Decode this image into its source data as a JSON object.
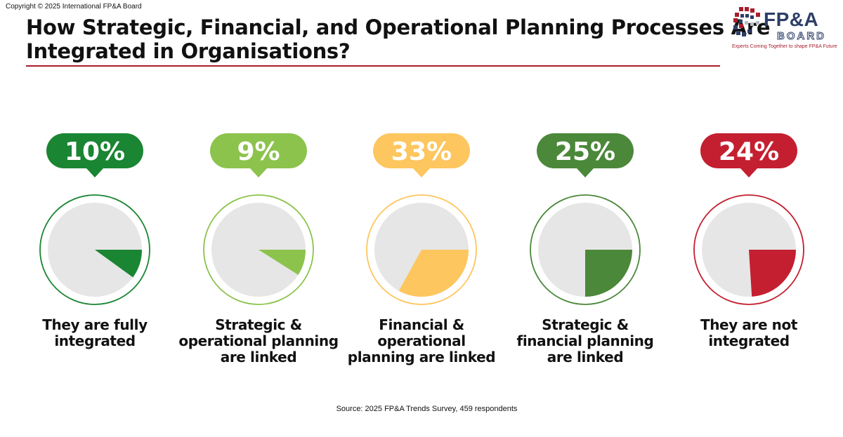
{
  "copyright": "Copyright © 2025 International  FP&A Board",
  "logo": {
    "icon_name": "fpa-board-grid-logo",
    "wordmark": "FP&A",
    "sub": "BOARD",
    "tagline": "Experts Coming Together to shape FP&A Future"
  },
  "chart_data": {
    "type": "pie",
    "title": "How Strategic, Financial, and Operational Planning Processes Are Integrated in Organisations?",
    "unit": "%",
    "categories": [
      "They are fully integrated",
      "Strategic & operational planning are linked",
      "Financial & operational planning are linked",
      "Strategic & financial planning are linked",
      "They are not integrated"
    ],
    "values": [
      10,
      9,
      33,
      25,
      24
    ],
    "labels": [
      "10%",
      "9%",
      "33%",
      "25%",
      "24%"
    ],
    "caption_lines": [
      [
        "They are fully",
        "integrated"
      ],
      [
        "Strategic &",
        "operational planning",
        "are linked"
      ],
      [
        "Financial &",
        "operational",
        "planning are linked"
      ],
      [
        "Strategic &",
        "financial planning",
        "are linked"
      ],
      [
        "They are not",
        "integrated"
      ]
    ],
    "colors": [
      "#1a8532",
      "#8cc34c",
      "#fdc65e",
      "#4b883a",
      "#c41f30"
    ],
    "remainder_color": "#e6e6e6",
    "source": "Source: 2025 FP&A Trends Survey, 459 respondents"
  }
}
